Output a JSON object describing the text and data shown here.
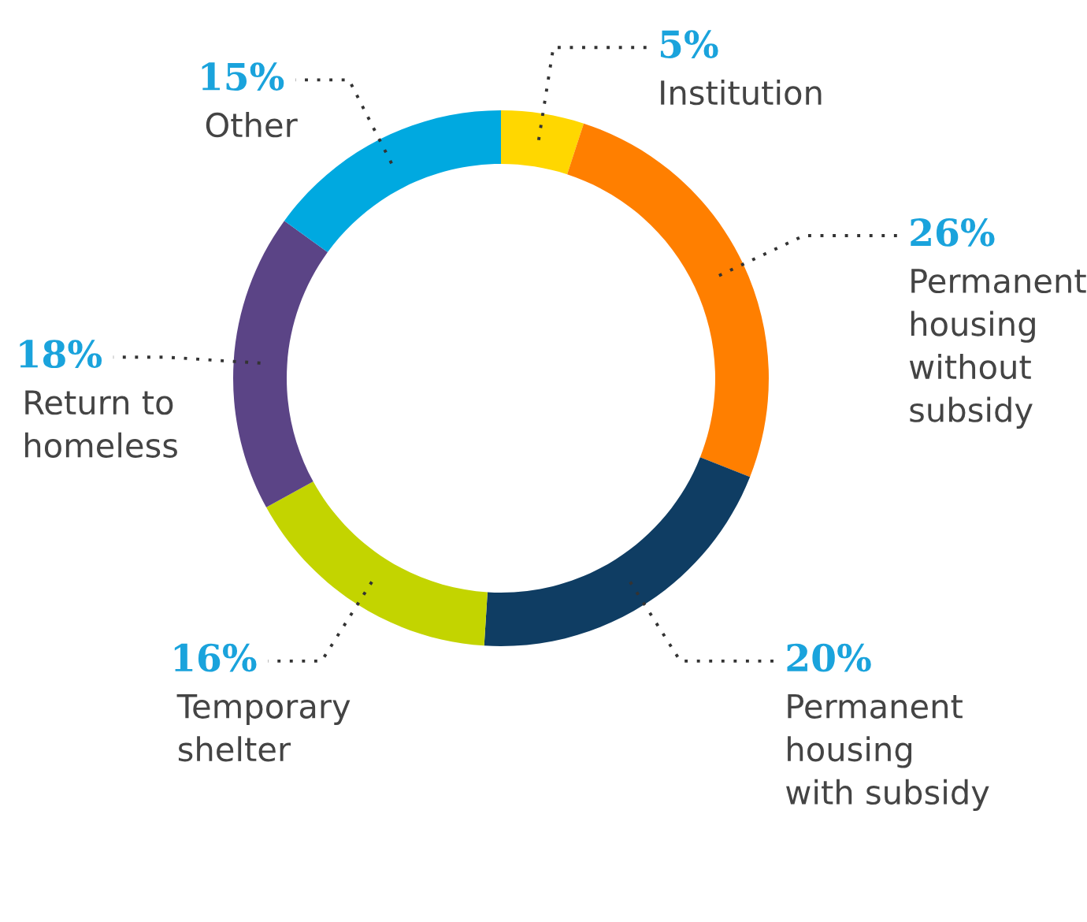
{
  "chart_data": {
    "type": "donut",
    "categories": [
      "Institution",
      "Permanent\nhousing\nwithout\nsubsidy",
      "Permanent\nhousing\nwith subsidy",
      "Temporary\nshelter",
      "Return to\nhomeless",
      "Other"
    ],
    "values": [
      5,
      26,
      20,
      16,
      18,
      15
    ],
    "value_labels": [
      "5%",
      "26%",
      "20%",
      "16%",
      "18%",
      "15%"
    ],
    "colors": [
      "#ffd700",
      "#ff7f00",
      "#0f3d63",
      "#c3d400",
      "#5b4486",
      "#00a9e0"
    ],
    "legend": false
  }
}
